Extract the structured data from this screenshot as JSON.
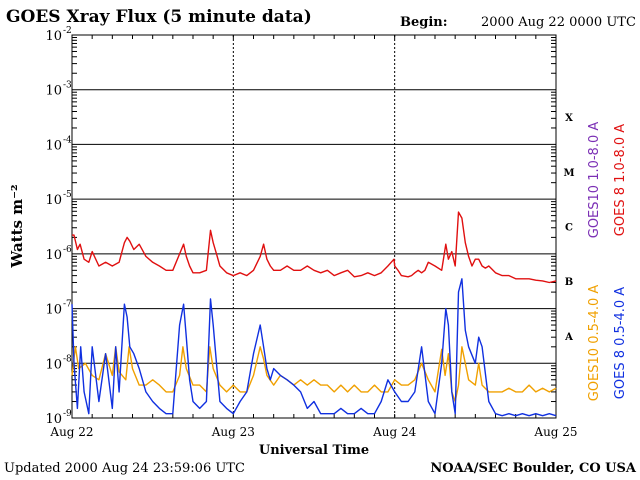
{
  "title": "GOES Xray Flux (5 minute data)",
  "begin_label": "Begin:",
  "begin_value": "2000 Aug 22 0000 UTC",
  "updated": "Updated 2000 Aug 24 23:59:06 UTC",
  "credit": "NOAA/SEC Boulder, CO USA",
  "chart_data": {
    "type": "line",
    "xlabel": "Universal Time",
    "ylabel": "Watts m⁻²",
    "x_unit": "hours since 2000 Aug 22 0000 UTC",
    "xlim": [
      0,
      72
    ],
    "x_ticks": [
      {
        "x": 0,
        "label": "Aug 22"
      },
      {
        "x": 24,
        "label": "Aug 23"
      },
      {
        "x": 48,
        "label": "Aug 24"
      },
      {
        "x": 72,
        "label": "Aug 25"
      }
    ],
    "y_scale": "log",
    "ylim": [
      1e-09,
      0.01
    ],
    "y_ticks": [
      {
        "exp": -2,
        "label": "10",
        "sup": "-2"
      },
      {
        "exp": -3,
        "label": "10",
        "sup": "-3"
      },
      {
        "exp": -4,
        "label": "10",
        "sup": "-4"
      },
      {
        "exp": -5,
        "label": "10",
        "sup": "-5"
      },
      {
        "exp": -6,
        "label": "10",
        "sup": "-6"
      },
      {
        "exp": -7,
        "label": "10",
        "sup": "-7"
      },
      {
        "exp": -8,
        "label": "10",
        "sup": "-8"
      },
      {
        "exp": -9,
        "label": "10",
        "sup": "-9"
      }
    ],
    "flare_classes": [
      {
        "label": "X",
        "exp": -3.5
      },
      {
        "label": "M",
        "exp": -4.5
      },
      {
        "label": "C",
        "exp": -5.5
      },
      {
        "label": "B",
        "exp": -6.5
      },
      {
        "label": "A",
        "exp": -7.5
      }
    ],
    "grid": true,
    "series": [
      {
        "name": "GOES10 1.0-8.0 A",
        "color": "#7b2fb5",
        "x": [
          0,
          72
        ],
        "y": [
          null,
          null
        ]
      },
      {
        "name": "GOES 8 1.0-8.0 A",
        "color": "#e01010",
        "x": [
          0,
          0.3,
          0.8,
          1.2,
          1.8,
          2.5,
          3,
          4,
          5,
          6,
          7,
          7.8,
          8.2,
          8.6,
          9.2,
          10,
          11,
          12,
          13,
          14,
          15,
          16,
          16.6,
          17,
          17.5,
          18,
          19,
          20,
          20.6,
          21,
          21.5,
          22,
          23,
          24,
          25,
          26,
          27,
          28,
          28.5,
          29,
          29.5,
          30,
          31,
          32,
          33,
          34,
          35,
          36,
          37,
          38,
          39,
          40,
          41,
          42,
          43,
          44,
          45,
          46,
          47,
          47.9,
          48,
          48.5,
          49,
          50,
          50.5,
          51,
          51.5,
          52,
          52.5,
          53,
          54,
          55,
          55.6,
          56,
          56.5,
          57,
          57.5,
          58,
          58.5,
          59,
          59.5,
          60,
          60.5,
          61,
          61.5,
          62,
          63,
          64,
          65,
          66,
          67,
          68,
          69,
          70,
          71,
          72
        ],
        "y": [
          2.2e-06,
          2.2e-06,
          1.2e-06,
          1.5e-06,
          8e-07,
          7e-07,
          1.1e-06,
          6e-07,
          7e-07,
          6e-07,
          7e-07,
          1.6e-06,
          2e-06,
          1.7e-06,
          1.2e-06,
          1.5e-06,
          9e-07,
          7e-07,
          6e-07,
          5e-07,
          5e-07,
          1e-06,
          1.5e-06,
          9e-07,
          6e-07,
          4.5e-07,
          4.5e-07,
          5e-07,
          2.7e-06,
          1.6e-06,
          1e-06,
          6e-07,
          4.5e-07,
          4e-07,
          4.5e-07,
          4e-07,
          5e-07,
          9e-07,
          1.5e-06,
          8e-07,
          6e-07,
          5e-07,
          5e-07,
          6e-07,
          5e-07,
          5e-07,
          6e-07,
          5e-07,
          4.5e-07,
          5e-07,
          4e-07,
          4.5e-07,
          5e-07,
          3.8e-07,
          4e-07,
          4.5e-07,
          4e-07,
          4.5e-07,
          6e-07,
          8e-07,
          6e-07,
          5e-07,
          4e-07,
          3.8e-07,
          4e-07,
          4.5e-07,
          5e-07,
          4.5e-07,
          5e-07,
          7e-07,
          6e-07,
          5e-07,
          1.5e-06,
          8e-07,
          1.1e-06,
          6e-07,
          5.8e-06,
          4.5e-06,
          1.6e-06,
          9e-07,
          6e-07,
          8e-07,
          8e-07,
          6e-07,
          5.5e-07,
          6e-07,
          4.5e-07,
          4e-07,
          4e-07,
          3.5e-07,
          3.5e-07,
          3.5e-07,
          3.3e-07,
          3.2e-07,
          3e-07,
          3.2e-07
        ],
        "style": "solid"
      },
      {
        "name": "GOES10 0.5-4.0 A",
        "color": "#f0a000",
        "x": [
          0,
          0.5,
          1,
          2,
          3,
          4,
          5,
          6,
          6.5,
          7,
          8,
          8.5,
          9,
          10,
          11,
          12,
          13,
          14,
          15,
          16,
          16.5,
          17,
          18,
          19,
          20,
          20.5,
          21,
          22,
          23,
          24,
          25,
          26,
          27,
          28,
          28.5,
          29,
          30,
          31,
          32,
          33,
          34,
          35,
          36,
          37,
          38,
          39,
          40,
          41,
          42,
          43,
          44,
          45,
          46,
          47,
          48,
          49,
          50,
          51,
          52,
          53,
          54,
          55,
          55.5,
          56,
          56.5,
          57,
          57.5,
          58,
          58.5,
          59,
          60,
          60.5,
          61,
          62,
          63,
          64,
          65,
          66,
          67,
          68,
          69,
          70,
          71,
          72
        ],
        "y": [
          6e-09,
          2e-08,
          8e-09,
          1e-08,
          6e-09,
          5e-09,
          1.5e-08,
          6e-09,
          2e-08,
          7e-09,
          5e-09,
          2e-08,
          8e-09,
          4e-09,
          4e-09,
          5e-09,
          4e-09,
          3e-09,
          3e-09,
          6e-09,
          2e-08,
          8e-09,
          4e-09,
          4e-09,
          3e-09,
          2e-08,
          8e-09,
          4e-09,
          3e-09,
          4e-09,
          3e-09,
          3e-09,
          6e-09,
          2e-08,
          1.2e-08,
          6e-09,
          4e-09,
          6e-09,
          5e-09,
          4e-09,
          5e-09,
          4e-09,
          5e-09,
          4e-09,
          4e-09,
          3e-09,
          4e-09,
          3e-09,
          4e-09,
          3e-09,
          3e-09,
          4e-09,
          3e-09,
          3e-09,
          5e-09,
          4e-09,
          4e-09,
          5e-09,
          1e-08,
          5e-09,
          3e-09,
          1.8e-08,
          6e-09,
          1.5e-08,
          3e-09,
          2e-09,
          4e-09,
          2e-08,
          1e-08,
          5e-09,
          4e-09,
          1e-08,
          4e-09,
          3e-09,
          3e-09,
          3e-09,
          3.5e-09,
          3e-09,
          3e-09,
          4e-09,
          3e-09,
          3.5e-09,
          3e-09,
          3.5e-09
        ],
        "style": "solid"
      },
      {
        "name": "GOES 8 0.5-4.0 A",
        "color": "#1030e0",
        "x": [
          0,
          0.3,
          0.8,
          1.3,
          1.8,
          2.5,
          3,
          4,
          5,
          6,
          6.5,
          7,
          7.8,
          8.2,
          8.6,
          9.2,
          10,
          11,
          12,
          13,
          14,
          15,
          16,
          16.6,
          17,
          17.5,
          18,
          19,
          20,
          20.6,
          21,
          21.5,
          22,
          23,
          24,
          25,
          26,
          27,
          28,
          28.5,
          29,
          29.5,
          30,
          31,
          32,
          33,
          34,
          35,
          36,
          37,
          38,
          39,
          40,
          41,
          42,
          43,
          44,
          45,
          46,
          47,
          48,
          49,
          50,
          51,
          52,
          53,
          54,
          55,
          55.6,
          56,
          56.5,
          57,
          57.5,
          58,
          58.5,
          59,
          60,
          60.5,
          61,
          62,
          63,
          64,
          65,
          66,
          67,
          68,
          69,
          70,
          71,
          72
        ],
        "y": [
          1.2e-07,
          1e-08,
          1.5e-09,
          2e-08,
          3e-09,
          1.2e-09,
          2e-08,
          2e-09,
          1.5e-08,
          1.5e-09,
          2e-08,
          3e-09,
          1.2e-07,
          7e-08,
          2e-08,
          1.5e-08,
          8e-09,
          3e-09,
          2e-09,
          1.5e-09,
          1.2e-09,
          1.2e-09,
          5e-08,
          1.2e-07,
          3e-08,
          5e-09,
          2e-09,
          1.5e-09,
          2e-09,
          1.5e-07,
          5e-08,
          1e-08,
          2e-09,
          1.5e-09,
          1.2e-09,
          2e-09,
          3e-09,
          1.5e-08,
          5e-08,
          2e-08,
          8e-09,
          5e-09,
          8e-09,
          6e-09,
          5e-09,
          4e-09,
          3e-09,
          1.5e-09,
          2e-09,
          1.2e-09,
          1.2e-09,
          1.2e-09,
          1.5e-09,
          1.2e-09,
          1.2e-09,
          1.5e-09,
          1.2e-09,
          1.2e-09,
          2e-09,
          5e-09,
          3e-09,
          2e-09,
          2e-09,
          3e-09,
          2e-08,
          2e-09,
          1.2e-09,
          1e-08,
          1e-07,
          5e-08,
          3e-09,
          1.2e-09,
          2e-07,
          3.5e-07,
          4e-08,
          2e-08,
          1e-08,
          3e-08,
          2e-08,
          2e-09,
          1.2e-09,
          1.1e-09,
          1.2e-09,
          1.1e-09,
          1.2e-09,
          1.1e-09,
          1.2e-09,
          1.1e-09,
          1.2e-09,
          1.1e-09
        ],
        "style": "solid"
      }
    ]
  }
}
